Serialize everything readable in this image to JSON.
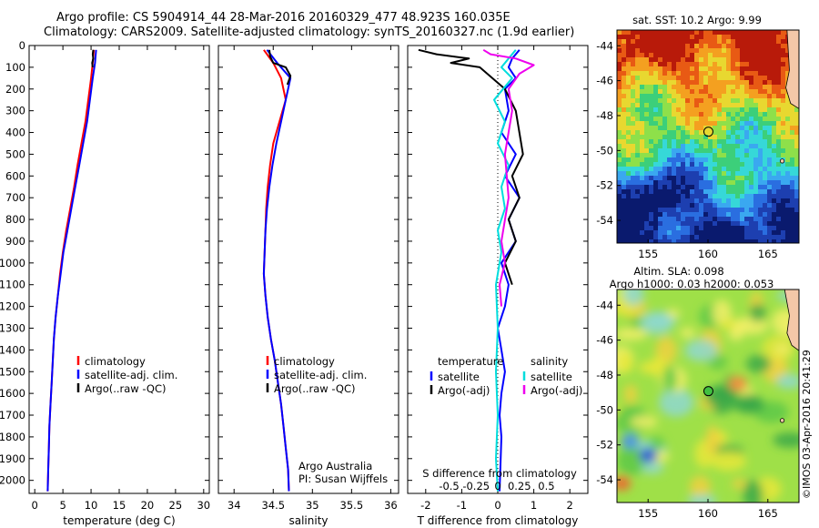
{
  "title_line1": "Argo profile: CS 5904914_44 28-Mar-2016 20160329_477 48.923S 160.035E",
  "title_line2": "Climatology: CARS2009. Satellite-adjusted climatology: synTS_20160327.nc (1.9d earlier)",
  "credit": "©IMOS 03-Apr-2016 20:41:29",
  "depth_ticks": [
    0,
    100,
    200,
    300,
    400,
    500,
    600,
    700,
    800,
    900,
    1000,
    1100,
    1200,
    1300,
    1400,
    1500,
    1600,
    1700,
    1800,
    1900,
    2000
  ],
  "colors": {
    "climatology": "#ff0000",
    "satellite": "#0000ff",
    "argo": "#000000",
    "sat_salinity": "#00dddd",
    "argo_salinity_diff": "#ee00ee"
  },
  "chart_data": [
    {
      "type": "line",
      "xlabel": "temperature (deg C)",
      "xlim": [
        -1,
        31
      ],
      "ylim": [
        2060,
        0
      ],
      "xticks": [
        0,
        5,
        10,
        15,
        20,
        25,
        30
      ],
      "legend": [
        "climatology",
        "satellite-adj. clim.",
        "Argo(..raw -QC)"
      ],
      "series": [
        {
          "name": "climatology",
          "color": "#ff0000",
          "x": [
            10.5,
            10.3,
            10.0,
            9.5,
            9.0,
            8.3,
            7.6,
            7.0,
            6.3,
            5.6,
            5.0,
            4.5,
            4.1,
            3.7,
            3.4,
            3.2,
            3.0,
            2.8,
            2.6,
            2.5,
            2.4,
            2.3
          ],
          "y": [
            20,
            80,
            150,
            250,
            350,
            450,
            550,
            650,
            750,
            850,
            950,
            1050,
            1150,
            1250,
            1350,
            1450,
            1550,
            1650,
            1750,
            1850,
            1950,
            2050
          ]
        },
        {
          "name": "satellite-adj. clim.",
          "color": "#0000ff",
          "x": [
            10.9,
            10.7,
            10.3,
            9.8,
            9.3,
            8.6,
            7.9,
            7.2,
            6.5,
            5.8,
            5.1,
            4.6,
            4.1,
            3.7,
            3.4,
            3.2,
            3.0,
            2.8,
            2.6,
            2.5,
            2.4,
            2.3
          ],
          "y": [
            20,
            80,
            150,
            250,
            350,
            450,
            550,
            650,
            750,
            850,
            950,
            1050,
            1150,
            1250,
            1350,
            1450,
            1550,
            1650,
            1750,
            1850,
            1950,
            2050
          ]
        },
        {
          "name": "Argo(..raw -QC)",
          "color": "#000000",
          "x": [
            10.4,
            10.3,
            10.4,
            10.2,
            10.3
          ],
          "y": [
            20,
            40,
            60,
            80,
            100
          ]
        }
      ]
    },
    {
      "type": "line",
      "xlabel": "salinity",
      "xlim": [
        33.8,
        36.1
      ],
      "ylim": [
        2060,
        0
      ],
      "xticks": [
        34,
        34.5,
        35,
        35.5,
        36
      ],
      "legend": [
        "climatology",
        "satellite-adj. clim.",
        "Argo(..raw -QC)"
      ],
      "annotation": [
        "Argo Australia",
        "PI: Susan Wijffels"
      ],
      "series": [
        {
          "name": "climatology",
          "color": "#ff0000",
          "x": [
            34.38,
            34.5,
            34.6,
            34.66,
            34.58,
            34.5,
            34.46,
            34.43,
            34.41,
            34.4,
            34.39,
            34.38,
            34.4,
            34.43,
            34.47,
            34.52,
            34.56,
            34.6,
            34.63,
            34.66,
            34.69,
            34.7
          ],
          "y": [
            20,
            80,
            150,
            250,
            350,
            450,
            550,
            650,
            750,
            850,
            950,
            1050,
            1150,
            1250,
            1350,
            1450,
            1550,
            1650,
            1750,
            1850,
            1950,
            2050
          ]
        },
        {
          "name": "satellite-adj. clim.",
          "color": "#0000ff",
          "x": [
            34.42,
            34.55,
            34.72,
            34.66,
            34.6,
            34.54,
            34.49,
            34.45,
            34.42,
            34.4,
            34.39,
            34.38,
            34.4,
            34.43,
            34.47,
            34.52,
            34.56,
            34.6,
            34.63,
            34.66,
            34.69,
            34.7
          ],
          "y": [
            20,
            80,
            150,
            250,
            350,
            450,
            550,
            650,
            750,
            850,
            950,
            1050,
            1150,
            1250,
            1350,
            1450,
            1550,
            1650,
            1750,
            1850,
            1950,
            2050
          ]
        },
        {
          "name": "Argo(..raw -QC)",
          "color": "#000000",
          "x": [
            34.45,
            34.46,
            34.5,
            34.66,
            34.72,
            34.68
          ],
          "y": [
            20,
            50,
            80,
            100,
            140,
            180
          ]
        }
      ]
    },
    {
      "type": "line",
      "xlabel": "T difference from climatology",
      "xlabel_top": "S difference from climatology",
      "xlim": [
        -2.5,
        2.5
      ],
      "ylim": [
        2060,
        0
      ],
      "xticks": [
        -2,
        -1,
        0,
        1,
        2
      ],
      "xticks_top_labels": [
        "-0.5",
        "-0.25",
        "0",
        "0.25",
        "0.5"
      ],
      "legend_temperature_title": "temperature",
      "legend_salinity_title": "salinity",
      "legend_left": [
        "satellite",
        "Argo(-adj)"
      ],
      "legend_right": [
        "satellite",
        "Argo(-adj)"
      ],
      "series": [
        {
          "name": "satellite",
          "color": "#0000ff",
          "x": [
            0.6,
            0.4,
            0.3,
            0.5,
            0.2,
            0.3,
            0.1,
            0.5,
            0.2,
            0.6,
            0.3,
            0.5,
            0.1,
            0.3,
            0.2,
            0.0,
            0.1,
            0.2,
            0.1,
            0.05,
            0.1,
            0.05
          ],
          "y": [
            20,
            60,
            100,
            150,
            200,
            300,
            400,
            500,
            600,
            700,
            800,
            900,
            1000,
            1100,
            1200,
            1300,
            1400,
            1500,
            1600,
            1700,
            1800,
            2050
          ]
        },
        {
          "name": "Argo(-adj)",
          "color": "#000000",
          "x": [
            -2.2,
            -1.7,
            -0.8,
            -1.3,
            -0.5,
            0.2,
            0.5,
            0.7,
            0.4,
            0.6,
            0.3,
            0.5,
            0.2,
            0.4
          ],
          "y": [
            20,
            40,
            60,
            80,
            100,
            200,
            300,
            500,
            600,
            700,
            800,
            900,
            1000,
            1100
          ]
        },
        {
          "name": "satellite salinity",
          "color": "#00dddd",
          "x": [
            0.5,
            0.3,
            0.1,
            0.4,
            -0.1,
            0.2,
            0.0,
            0.3,
            0.1,
            0.2,
            0.0,
            0.1,
            -0.05,
            0.0,
            -0.05,
            0.0,
            -0.05,
            0.0
          ],
          "y": [
            20,
            60,
            100,
            150,
            250,
            350,
            450,
            550,
            650,
            750,
            850,
            950,
            1100,
            1300,
            1500,
            1700,
            1900,
            2050
          ]
        },
        {
          "name": "Argo(-adj) salinity",
          "color": "#ee00ee",
          "x": [
            -0.4,
            -0.2,
            0.5,
            1.0,
            0.6,
            0.3,
            0.4,
            0.2,
            0.3,
            0.1,
            0.2,
            0.05,
            0.1
          ],
          "y": [
            20,
            40,
            60,
            90,
            130,
            200,
            300,
            500,
            700,
            900,
            1000,
            1100,
            1200
          ]
        }
      ]
    },
    {
      "type": "heatmap",
      "title": "sat. SST: 10.2  Argo: 9.99",
      "xlim": [
        152.4,
        167.6
      ],
      "ylim": [
        -55.3,
        -43.1
      ],
      "xticks": [
        155,
        160,
        165
      ],
      "yticks": [
        -44,
        -46,
        -48,
        -50,
        -52,
        -54
      ],
      "marker": {
        "lon": 160.035,
        "lat": -48.923
      }
    },
    {
      "type": "heatmap",
      "title_lines": [
        "Altim. SLA: 0.098",
        "Argo h1000: 0.03 h2000: 0.053"
      ],
      "xlim": [
        152.4,
        167.6
      ],
      "ylim": [
        -55.3,
        -43.1
      ],
      "xticks": [
        155,
        160,
        165
      ],
      "yticks": [
        -44,
        -46,
        -48,
        -50,
        -52,
        -54
      ],
      "marker": {
        "lon": 160.035,
        "lat": -48.923
      }
    }
  ]
}
